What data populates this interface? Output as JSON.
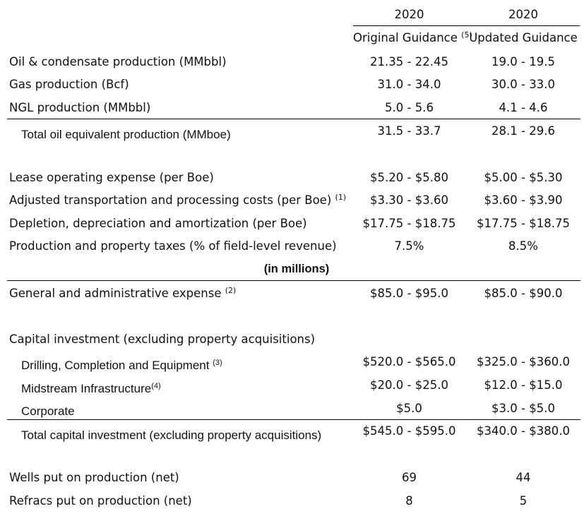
{
  "header": {
    "year_original": "2020",
    "year_updated": "2020",
    "original_label": "Original Guidance",
    "original_note": "(5)",
    "updated_label": "Updated Guidance"
  },
  "units_note": "(in millions)",
  "rows": {
    "oil": {
      "label": "Oil & condensate production (MMbbl)",
      "original": "21.35 - 22.45",
      "updated": "19.0 - 19.5"
    },
    "gas": {
      "label": "Gas production (Bcf)",
      "original": "31.0 - 34.0",
      "updated": "30.0 - 33.0"
    },
    "ngl": {
      "label": "NGL production (MMbbl)",
      "original": "5.0 - 5.6",
      "updated": "4.1 - 4.6"
    },
    "total_oe": {
      "label": "Total oil equivalent production (MMboe)",
      "original": "31.5 - 33.7",
      "updated": "28.1 - 29.6"
    },
    "loe": {
      "label": "Lease operating expense (per Boe)",
      "original": "$5.20 - $5.80",
      "updated": "$5.00 - $5.30"
    },
    "transport": {
      "label": "Adjusted transportation and processing costs (per Boe)",
      "note": "(1)",
      "original": "$3.30 - $3.60",
      "updated": "$3.60 - $3.90"
    },
    "dda": {
      "label": "Depletion, depreciation and amortization (per Boe)",
      "original": "$17.75 - $18.75",
      "updated": "$17.75 - $18.75"
    },
    "taxes": {
      "label": "Production and property taxes (% of field-level revenue)",
      "original": "7.5%",
      "updated": "8.5%"
    },
    "gna": {
      "label": "General and administrative expense",
      "note": "(2)",
      "original": "$85.0 - $95.0",
      "updated": "$85.0 - $90.0"
    },
    "capex_heading": {
      "label": "Capital investment (excluding property acquisitions)"
    },
    "drilling": {
      "label": "Drilling, Completion and Equipment",
      "note": "(3)",
      "original": "$520.0 - $565.0",
      "updated": "$325.0 - $360.0"
    },
    "midstream": {
      "label": "Midstream Infrastructure",
      "note": "(4)",
      "original": "$20.0 - $25.0",
      "updated": "$12.0 - $15.0"
    },
    "corporate": {
      "label": "Corporate",
      "original": "$5.0",
      "updated": "$3.0 - $5.0"
    },
    "total_capex": {
      "label": "Total capital investment (excluding property acquisitions)",
      "original": "$545.0 - $595.0",
      "updated": "$340.0 - $380.0"
    },
    "wells": {
      "label": "Wells put on production (net)",
      "original": "69",
      "updated": "44"
    },
    "refracs": {
      "label": "Refracs put on production (net)",
      "original": "8",
      "updated": "5"
    }
  }
}
